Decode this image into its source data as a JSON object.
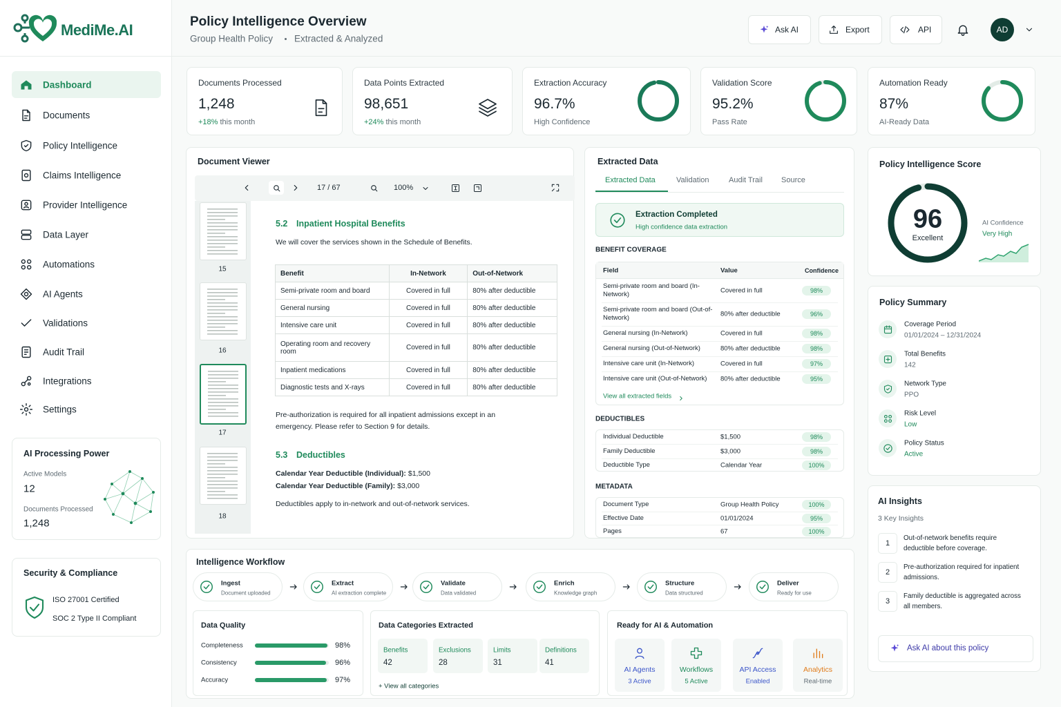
{
  "brand": "MediMe.AI",
  "header": {
    "title": "Policy Intelligence Overview",
    "subtitle": [
      "Group Health Policy",
      "Extracted & Analyzed"
    ],
    "buttons": [
      "Ask AI",
      "Export",
      "API"
    ],
    "avatar": "AD"
  },
  "nav": [
    "Dashboard",
    "Documents",
    "Policy Intelligence",
    "Claims Intelligence",
    "Provider Intelligence",
    "Data Layer",
    "Automations",
    "AI Agents",
    "Validations",
    "Audit Trail",
    "Integrations",
    "Settings"
  ],
  "processing": {
    "title": "AI Processing Power",
    "items": [
      {
        "label": "Active Models",
        "value": "12"
      },
      {
        "label": "Documents Processed",
        "value": "1,248"
      }
    ]
  },
  "security": {
    "title": "Security & Compliance",
    "items": [
      "ISO 27001 Certified",
      "SOC 2 Type II Compliant"
    ]
  },
  "kpis": [
    {
      "label": "Documents Processed",
      "value": "1,248",
      "delta": "+18%",
      "note": "this month"
    },
    {
      "label": "Data Points Extracted",
      "value": "98,651",
      "delta": "+24%",
      "note": "this month"
    },
    {
      "label": "Extraction Accuracy",
      "value": "96.7%",
      "percent": 96.7,
      "note": "High Confidence"
    },
    {
      "label": "Validation Score",
      "value": "95.2%",
      "percent": 95.2,
      "note": "Pass Rate"
    },
    {
      "label": "Automation Ready",
      "value": "87%",
      "percent": 87,
      "note": "AI-Ready Data"
    }
  ],
  "viewer": {
    "title": "Document Viewer",
    "page": "17 / 67",
    "zoom": "100%",
    "thumbs": [
      "15",
      "16",
      "17",
      "18"
    ],
    "section1": {
      "number": "5.2",
      "title": "Inpatient Hospital Benefits",
      "intro": "We will cover the services shown in the Schedule of Benefits.",
      "table": {
        "header": [
          "Benefit",
          "In-Network",
          "Out-of-Network"
        ],
        "rows": [
          [
            "Semi-private room and board",
            "Covered in full",
            "80% after deductible"
          ],
          [
            "General nursing",
            "Covered in full",
            "80% after deductible"
          ],
          [
            "Intensive care unit",
            "Covered in full",
            "80% after deductible"
          ],
          [
            "Operating room and recovery room",
            "Covered in full",
            "80% after deductible"
          ],
          [
            "Inpatient medications",
            "Covered in full",
            "80% after deductible"
          ],
          [
            "Diagnostic tests and X-rays",
            "Covered in full",
            "80% after deductible"
          ]
        ]
      },
      "note": "Pre-authorization is required for all inpatient admissions except in an emergency. Please refer to Section 9 for details."
    },
    "section2": {
      "number": "5.3",
      "title": "Deductibles",
      "lines": [
        {
          "label": "Calendar Year Deductible (Individual):",
          "value": "$1,500"
        },
        {
          "label": "Calendar Year Deductible (Family):",
          "value": "$3,000"
        }
      ],
      "note": "Deductibles apply to in-network and out-of-network services."
    }
  },
  "extracted": {
    "title": "Extracted Data",
    "tabs": [
      "Extracted Data",
      "Validation",
      "Audit Trail",
      "Source"
    ],
    "status": {
      "title": "Extraction Completed",
      "text": "High confidence data extraction"
    },
    "coverage": {
      "title": "BENEFIT COVERAGE",
      "header": [
        "Field",
        "Value",
        "Confidence"
      ],
      "rows": [
        [
          "Semi-private room and board (In-Network)",
          "Covered in full",
          "98%"
        ],
        [
          "Semi-private room and board (Out-of-Network)",
          "80% after deductible",
          "96%"
        ],
        [
          "General nursing (In-Network)",
          "Covered in full",
          "98%"
        ],
        [
          "General nursing (Out-of-Network)",
          "80% after deductible",
          "98%"
        ],
        [
          "Intensive care unit (In-Network)",
          "Covered in full",
          "97%"
        ],
        [
          "Intensive care unit (Out-of-Network)",
          "80% after deductible",
          "95%"
        ]
      ],
      "link": "View all extracted fields"
    },
    "deductibles": {
      "title": "DEDUCTIBLES",
      "rows": [
        [
          "Individual Deductible",
          "$1,500",
          "98%"
        ],
        [
          "Family Deductible",
          "$3,000",
          "98%"
        ],
        [
          "Deductible Type",
          "Calendar Year",
          "100%"
        ]
      ]
    },
    "metadata": {
      "title": "METADATA",
      "rows": [
        [
          "Document Type",
          "Group Health Policy",
          "100%"
        ],
        [
          "Effective Date",
          "01/01/2024",
          "95%"
        ],
        [
          "Pages",
          "67",
          "100%"
        ]
      ]
    }
  },
  "score": {
    "title": "Policy Intelligence Score",
    "value": 96,
    "label": "Excellent",
    "confidence_label": "AI Confidence",
    "confidence": "Very High"
  },
  "summary": {
    "title": "Policy Summary",
    "items": [
      {
        "label": "Coverage Period",
        "value": "01/01/2024 – 12/31/2024"
      },
      {
        "label": "Total Benefits",
        "value": "142"
      },
      {
        "label": "Network Type",
        "value": "PPO"
      },
      {
        "label": "Risk Level",
        "value": "Low"
      },
      {
        "label": "Policy Status",
        "value": "Active"
      }
    ]
  },
  "insights": {
    "title": "AI Insights",
    "subtitle": "3 Key Insights",
    "items": [
      {
        "number": "1",
        "text": "Out-of-network benefits require deductible before coverage."
      },
      {
        "number": "2",
        "text": "Pre-authorization required for inpatient admissions."
      },
      {
        "number": "3",
        "text": "Family deductible is aggregated across all members."
      }
    ],
    "button": "Ask AI about this policy"
  },
  "workflow": {
    "title": "Intelligence Workflow",
    "steps": [
      {
        "name": "Ingest",
        "status": "Document uploaded"
      },
      {
        "name": "Extract",
        "status": "AI extraction complete"
      },
      {
        "name": "Validate",
        "status": "Data validated"
      },
      {
        "name": "Enrich",
        "status": "Knowledge graph"
      },
      {
        "name": "Structure",
        "status": "Data structured"
      },
      {
        "name": "Deliver",
        "status": "Ready for use"
      }
    ]
  },
  "quality": {
    "title": "Data Quality",
    "items": [
      {
        "name": "Completeness",
        "value": 98,
        "value_label": "98%"
      },
      {
        "name": "Consistency",
        "value": 96,
        "value_label": "96%"
      },
      {
        "name": "Accuracy",
        "value": 97,
        "value_label": "97%"
      }
    ]
  },
  "categories": {
    "title": "Data Categories Extracted",
    "items": [
      {
        "name": "Benefits",
        "count": 42
      },
      {
        "name": "Exclusions",
        "count": 28
      },
      {
        "name": "Limits",
        "count": 31
      },
      {
        "name": "Definitions",
        "count": 41
      }
    ],
    "link": "+ View all categories"
  },
  "ready": {
    "title": "Ready for AI & Automation",
    "items": [
      {
        "name": "AI Agents",
        "status": "3 Active"
      },
      {
        "name": "Workflows",
        "status": "5 Active"
      },
      {
        "name": "API Access",
        "status": "Enabled"
      },
      {
        "name": "Analytics",
        "status": "Real-time"
      }
    ]
  }
}
